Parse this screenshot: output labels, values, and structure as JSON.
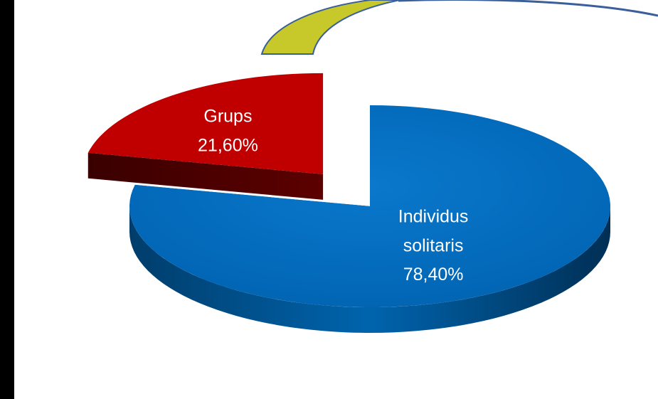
{
  "chart_data": {
    "type": "pie",
    "categories": [
      "Grups",
      "Individus solitaris"
    ],
    "values": [
      21.6,
      78.4
    ],
    "value_labels": [
      "21,60%",
      "78,40%"
    ],
    "colors": [
      "#c00000",
      "#0070c0"
    ],
    "exploded": [
      true,
      false
    ]
  }
}
